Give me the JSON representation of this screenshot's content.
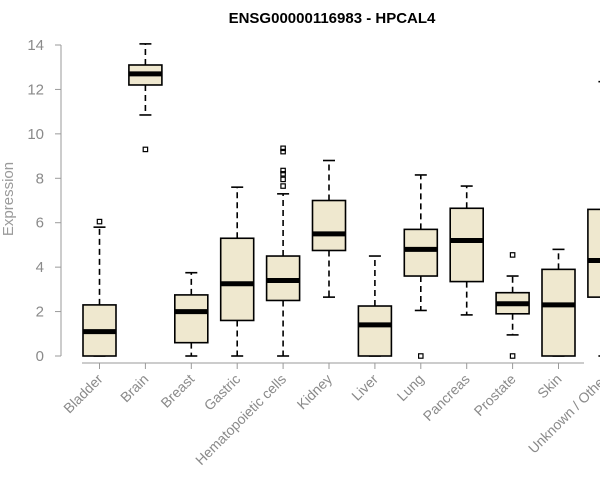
{
  "chart_data": {
    "type": "boxplot",
    "title": "ENSG00000116983 - HPCAL4",
    "xlabel": "",
    "ylabel": "Expression",
    "ylim": [
      0,
      14
    ],
    "yticks": [
      0,
      2,
      4,
      6,
      8,
      10,
      12,
      14
    ],
    "box_fill": "#efe8cf",
    "axis_color": "#9a9a9a",
    "categories": [
      "Bladder",
      "Brain",
      "Breast",
      "Gastric",
      "Hematopoietic cells",
      "Kidney",
      "Liver",
      "Lung",
      "Pancreas",
      "Prostate",
      "Skin",
      "Unknown / Other"
    ],
    "boxes": [
      {
        "min": 0,
        "q1": 0,
        "median": 1.1,
        "q3": 2.3,
        "max": 5.8,
        "outliers": [
          6.05
        ]
      },
      {
        "min": 10.85,
        "q1": 12.2,
        "median": 12.7,
        "q3": 13.1,
        "max": 14.05,
        "outliers": [
          9.3
        ]
      },
      {
        "min": 0,
        "q1": 0.6,
        "median": 2.0,
        "q3": 2.75,
        "max": 3.75,
        "outliers": []
      },
      {
        "min": 0,
        "q1": 1.6,
        "median": 3.25,
        "q3": 5.3,
        "max": 7.6,
        "outliers": []
      },
      {
        "min": 0,
        "q1": 2.5,
        "median": 3.4,
        "q3": 4.5,
        "max": 7.3,
        "outliers": [
          7.65,
          7.95,
          8.2,
          8.35,
          9.2,
          9.35
        ]
      },
      {
        "min": 2.65,
        "q1": 4.75,
        "median": 5.5,
        "q3": 7.0,
        "max": 8.8,
        "outliers": []
      },
      {
        "min": 0,
        "q1": 0,
        "median": 1.4,
        "q3": 2.25,
        "max": 4.5,
        "outliers": []
      },
      {
        "min": 2.05,
        "q1": 3.6,
        "median": 4.8,
        "q3": 5.7,
        "max": 8.15,
        "outliers": [
          0
        ]
      },
      {
        "min": 1.85,
        "q1": 3.35,
        "median": 5.2,
        "q3": 6.65,
        "max": 7.65,
        "outliers": []
      },
      {
        "min": 0.95,
        "q1": 1.9,
        "median": 2.35,
        "q3": 2.85,
        "max": 3.6,
        "outliers": [
          4.55,
          0
        ]
      },
      {
        "min": 0,
        "q1": 0,
        "median": 2.3,
        "q3": 3.9,
        "max": 4.8,
        "outliers": []
      },
      {
        "min": 0,
        "q1": 2.65,
        "median": 4.3,
        "q3": 6.6,
        "max": 12.35,
        "outliers": []
      }
    ]
  }
}
